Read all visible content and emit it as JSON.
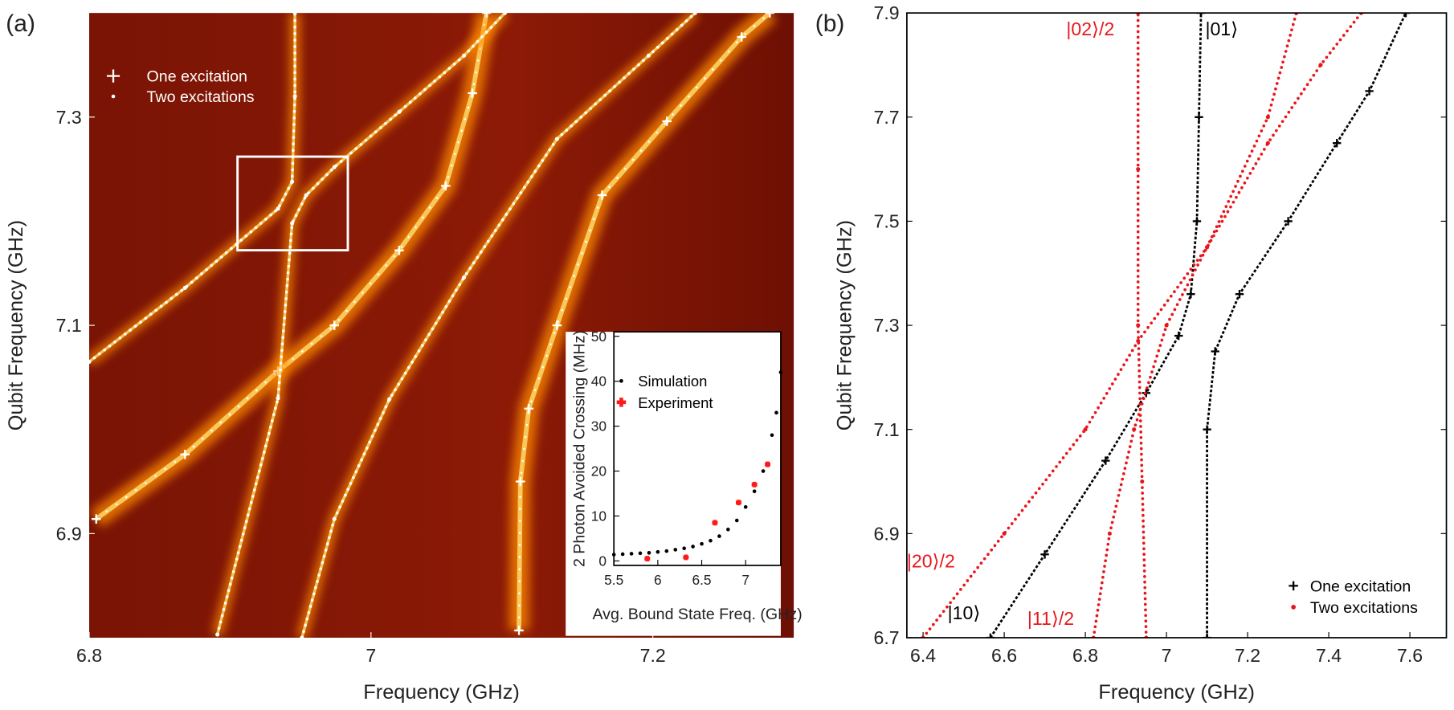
{
  "chart_data": [
    {
      "type": "line",
      "panel_label": "(a)",
      "xlabel": "Frequency (GHz)",
      "ylabel": "Qubit Frequency (GHz)",
      "xlim": [
        6.8,
        7.3
      ],
      "ylim": [
        6.8,
        7.4
      ],
      "xticks": [
        6.8,
        7,
        7.2
      ],
      "yticks": [
        6.9,
        7.1,
        7.3
      ],
      "background": "heatmap",
      "series": [
        {
          "name": "One excitation",
          "color": "#ffffff",
          "marker": "plus",
          "branches": [
            {
              "x": [
                6.805,
                6.868,
                6.934,
                6.974,
                7.02,
                7.053,
                7.072,
                7.082
              ],
              "values": [
                6.914,
                6.976,
                7.056,
                7.1,
                7.172,
                7.234,
                7.323,
                7.4
              ]
            },
            {
              "x": [
                7.105,
                7.106,
                7.112,
                7.132,
                7.164,
                7.21,
                7.263,
                7.283
              ],
              "values": [
                6.807,
                6.95,
                7.02,
                7.1,
                7.225,
                7.296,
                7.377,
                7.4
              ]
            }
          ]
        },
        {
          "name": "Two excitations",
          "color": "#ffffff",
          "marker": "dot",
          "branches": [
            {
              "x": [
                6.8,
                6.868,
                6.934,
                6.944,
                6.946,
                6.946
              ],
              "values": [
                7.065,
                7.136,
                7.212,
                7.238,
                7.32,
                7.4
              ]
            },
            {
              "x": [
                6.891,
                6.934,
                6.944,
                6.954,
                6.974,
                7.02,
                7.066,
                7.095
              ],
              "values": [
                6.803,
                7.03,
                7.198,
                7.225,
                7.252,
                7.305,
                7.359,
                7.4
              ]
            },
            {
              "x": [
                6.951,
                6.974,
                7.013,
                7.066,
                7.132,
                7.197,
                7.23
              ],
              "values": [
                6.8,
                6.914,
                7.029,
                7.146,
                7.279,
                7.359,
                7.4
              ]
            }
          ]
        }
      ]
    },
    {
      "type": "scatter",
      "xlabel": "Avg. Bound State Freq. (GHz)",
      "ylabel": "2 Photon Avoided Crossing (MHz)",
      "xlim": [
        5.5,
        7.4
      ],
      "ylim": [
        -1,
        51
      ],
      "xticks": [
        5.5,
        6,
        6.5,
        7
      ],
      "yticks": [
        0,
        10,
        20,
        30,
        40,
        50
      ],
      "series": [
        {
          "name": "Simulation",
          "color": "#000000",
          "marker": "dot",
          "branches": [
            {
              "x": [
                5.5,
                5.6,
                5.7,
                5.8,
                5.9,
                6.0,
                6.1,
                6.2,
                6.3,
                6.4,
                6.5,
                6.6,
                6.7,
                6.8,
                6.9,
                7.0,
                7.1,
                7.2,
                7.3,
                7.35,
                7.4
              ],
              "values": [
                1.4,
                1.5,
                1.6,
                1.7,
                1.8,
                2.0,
                2.2,
                2.5,
                2.8,
                3.2,
                3.8,
                4.5,
                5.5,
                7,
                9,
                12,
                15.5,
                20,
                28,
                33,
                42
              ]
            }
          ]
        },
        {
          "name": "Experiment",
          "color": "#ff1a1a",
          "marker": "plus",
          "branches": [
            {
              "x": [
                5.88,
                6.32,
                6.65,
                6.92,
                7.1,
                7.25
              ],
              "values": [
                0.5,
                0.8,
                8.5,
                13,
                17,
                21.5
              ]
            }
          ]
        }
      ]
    },
    {
      "type": "line",
      "panel_label": "(b)",
      "xlabel": "Frequency (GHz)",
      "ylabel": "Qubit Frequency (GHz)",
      "xlim": [
        6.36,
        7.69
      ],
      "ylim": [
        6.7,
        7.9
      ],
      "xticks": [
        6.4,
        6.6,
        6.8,
        7,
        7.2,
        7.4,
        7.6
      ],
      "yticks": [
        6.7,
        6.9,
        7.1,
        7.3,
        7.5,
        7.7,
        7.9
      ],
      "series": [
        {
          "name": "One excitation",
          "color": "#000000",
          "marker": "plus",
          "branches": [
            {
              "label": "|10⟩",
              "x": [
                6.566,
                6.7,
                6.85,
                6.95,
                7.03,
                7.06,
                7.075,
                7.08,
                7.085
              ],
              "values": [
                6.7,
                6.86,
                7.04,
                7.17,
                7.28,
                7.36,
                7.5,
                7.7,
                7.9
              ]
            },
            {
              "label": "|01⟩",
              "x": [
                7.1,
                7.1,
                7.12,
                7.18,
                7.3,
                7.42,
                7.5,
                7.59
              ],
              "values": [
                6.7,
                7.1,
                7.25,
                7.36,
                7.5,
                7.65,
                7.75,
                7.9
              ]
            }
          ]
        },
        {
          "name": "Two excitations",
          "color": "#e8161b",
          "marker": "dot",
          "branches": [
            {
              "label": "|20⟩/2",
              "x": [
                6.4,
                6.6,
                6.8,
                6.93,
                7.1,
                7.25,
                7.32
              ],
              "values": [
                6.7,
                6.9,
                7.1,
                7.27,
                7.45,
                7.7,
                7.9
              ]
            },
            {
              "label": "|11⟩/2",
              "x": [
                6.82,
                6.86,
                6.92,
                7.0,
                7.1,
                7.25,
                7.38,
                7.48
              ],
              "values": [
                6.7,
                6.9,
                7.1,
                7.3,
                7.45,
                7.65,
                7.8,
                7.9
              ]
            },
            {
              "label": "|02⟩/2",
              "x": [
                6.95,
                6.94,
                6.93,
                6.93,
                6.93
              ],
              "values": [
                6.7,
                7.0,
                7.3,
                7.6,
                7.9
              ]
            }
          ]
        }
      ]
    }
  ]
}
